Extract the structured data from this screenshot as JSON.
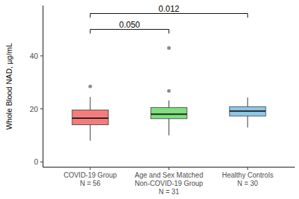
{
  "chart_data": {
    "type": "box",
    "y_label": "Whole Blood NAD, µg/mL",
    "categories": [
      "COVID-19 Group\nN = 56",
      "Age and Sex Matched\nNon-COVID-19 Group\nN = 31",
      "Healthy Controls\nN = 30"
    ],
    "colors": [
      "#f47c7c",
      "#7ee07e",
      "#8ec8ea"
    ],
    "boxes": [
      {
        "min": 8,
        "q1": 14,
        "median": 16.5,
        "q3": 19.6,
        "max": 24.5,
        "outliers": [
          28.5
        ]
      },
      {
        "min": 10,
        "q1": 16.3,
        "median": 18,
        "q3": 20.5,
        "max": 23.2,
        "outliers": [
          26.8,
          43
        ]
      },
      {
        "min": 13,
        "q1": 17.3,
        "median": 19.2,
        "q3": 20.8,
        "max": 24.3,
        "outliers": []
      }
    ],
    "comparisons": [
      {
        "from": 0,
        "to": 1,
        "y": 50,
        "label": "0.050"
      },
      {
        "from": 0,
        "to": 2,
        "y": 56,
        "label": "0.012"
      }
    ],
    "ylim": [
      -2,
      59
    ],
    "yticks": [
      0,
      20,
      40
    ],
    "grid": false
  }
}
